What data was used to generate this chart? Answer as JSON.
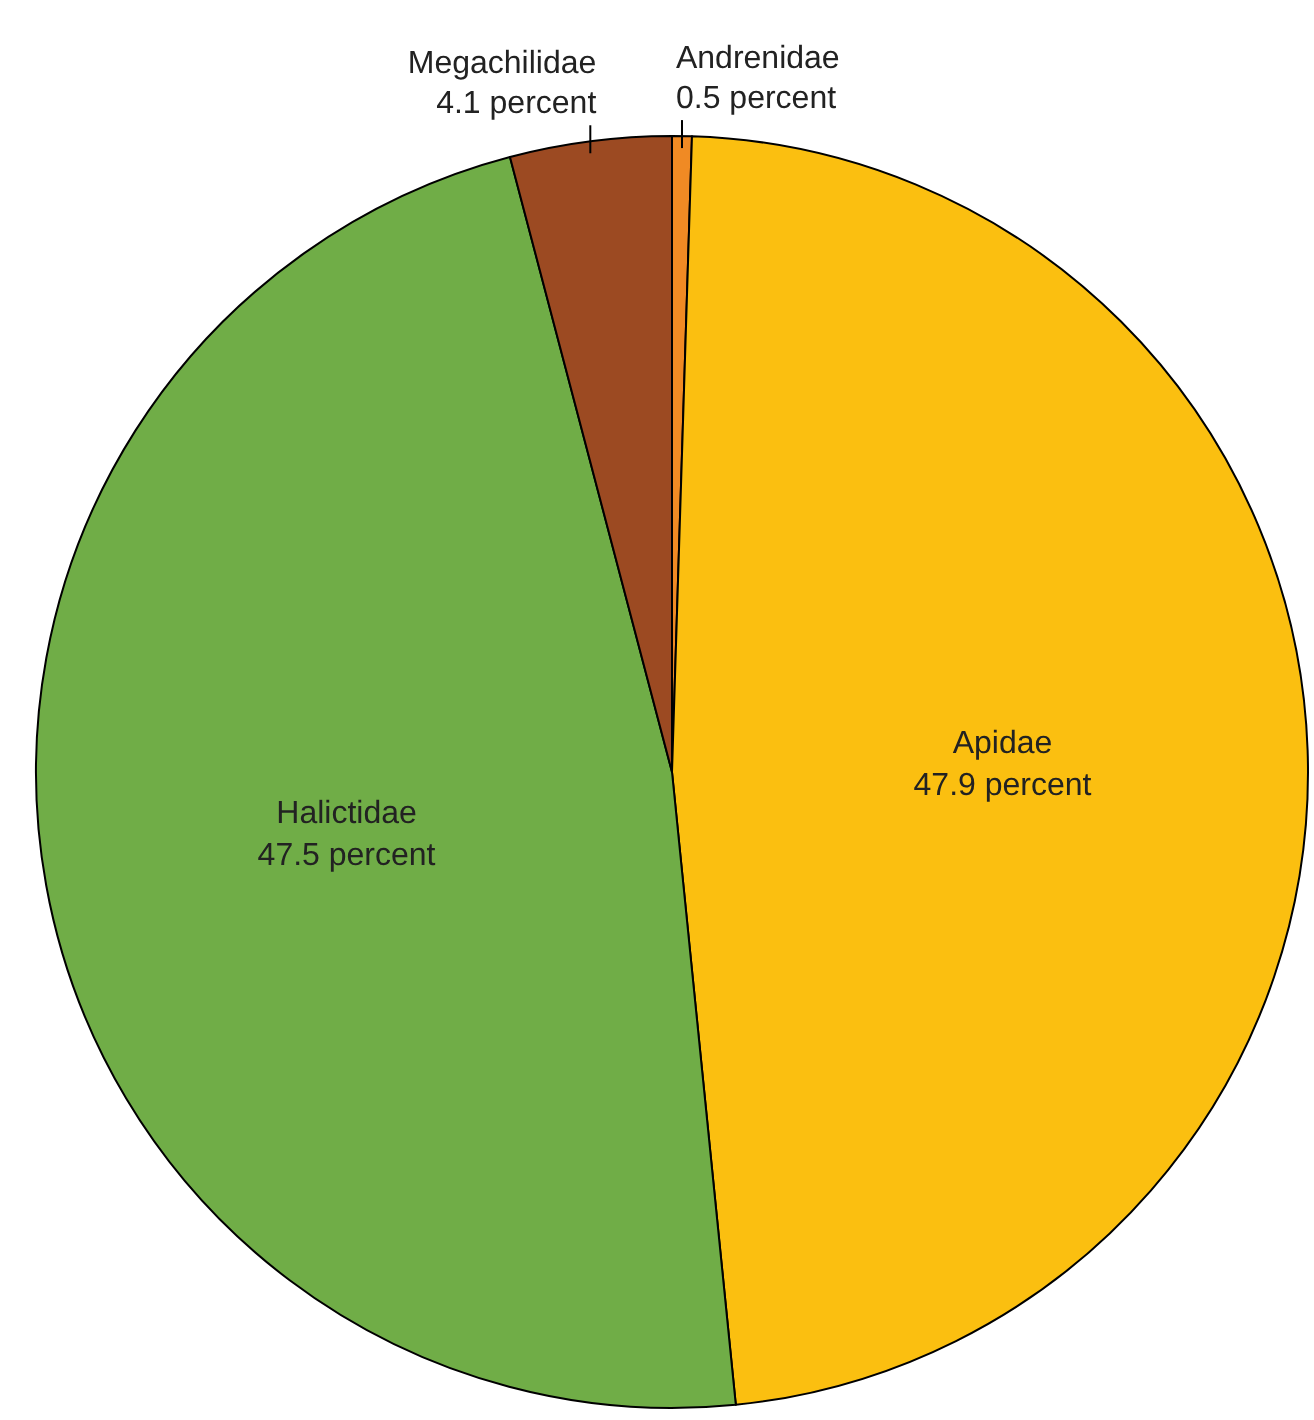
{
  "chart_data": {
    "type": "pie",
    "categories": [
      "Andrenidae",
      "Apidae",
      "Halictidae",
      "Megachilidae"
    ],
    "values": [
      0.5,
      47.9,
      47.5,
      4.1
    ],
    "colors": [
      "#f08a24",
      "#fbbf10",
      "#70ad47",
      "#9c4a22"
    ],
    "value_labels": [
      "0.5 percent",
      "47.9 percent",
      "47.5 percent",
      "4.1 percent"
    ]
  }
}
